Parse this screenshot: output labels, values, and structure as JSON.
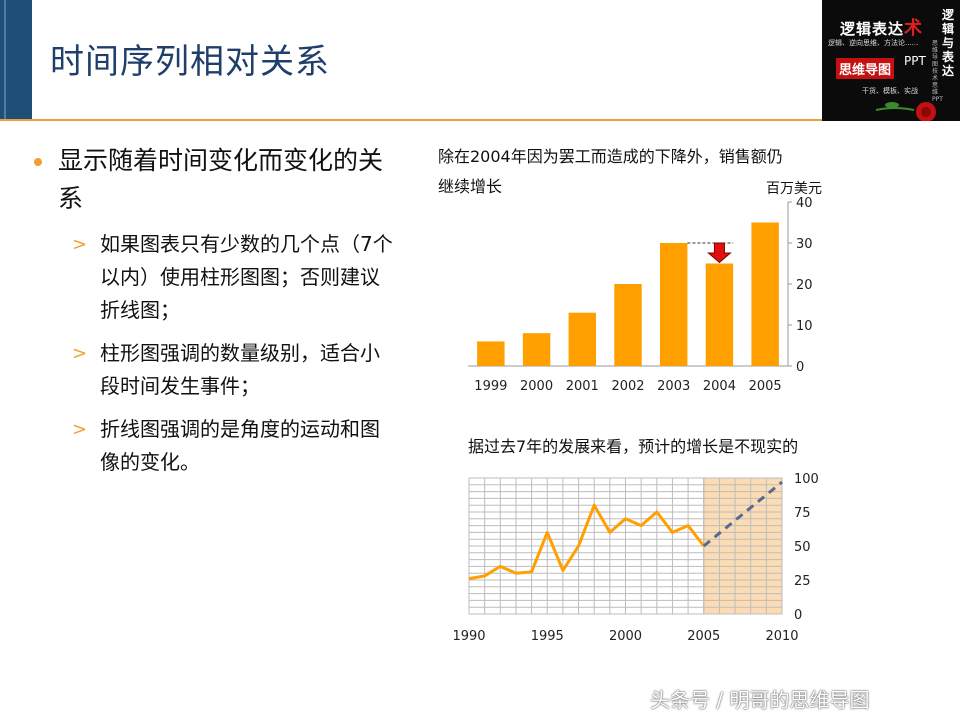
{
  "slide": {
    "title": "时间序列相对关系"
  },
  "logo": {
    "line1_prefix": "逻辑表达",
    "line1_accent": "术",
    "line2": "逻辑、逆向思维、方法论......",
    "badge": "思维导图",
    "ppt": "PPT",
    "line5": "干货、模板、实战",
    "vertical": "逻辑与表达",
    "vertical_small": "思维导图技术思维PPT"
  },
  "bullets": {
    "main": "显示随着时间变化而变化的关系",
    "sub": [
      "如果图表只有少数的几个点（7个以内）使用柱形图图；否则建议折线图；",
      "柱形图强调的数量级别，适合小段时间发生事件；",
      "折线图强调的是角度的运动和图像的变化。"
    ]
  },
  "bar_chart_caption": "除在2004年因为罢工而造成的下降外，销售额仍继续增长",
  "bar_chart_unit": "百万美元",
  "line_chart_caption": "据过去7年的发展来看，预计的增长是不现实的",
  "footer": "头条号 / 明哥的思维导图",
  "colors": {
    "accent": "#f0a030",
    "bar": "#ff9f00",
    "title": "#1f3f6b",
    "drop_arrow": "#e01010",
    "forecast_band": "#fbdcb4"
  },
  "chart_data": [
    {
      "type": "bar",
      "categories": [
        "1999",
        "2000",
        "2001",
        "2002",
        "2003",
        "2004",
        "2005"
      ],
      "values": [
        6,
        8,
        13,
        20,
        30,
        25,
        35
      ],
      "title": "",
      "xlabel": "",
      "ylabel": "百万美元",
      "ylim": [
        0,
        40
      ],
      "yticks": [
        0,
        10,
        20,
        30,
        40
      ],
      "annotation": "drop-arrow-2004",
      "grid": false
    },
    {
      "type": "line",
      "x": [
        1990,
        1991,
        1992,
        1993,
        1994,
        1995,
        1996,
        1997,
        1998,
        1999,
        2000,
        2001,
        2002,
        2003,
        2004,
        2005
      ],
      "series": [
        {
          "values": [
            26,
            28,
            35,
            30,
            31,
            60,
            32,
            50,
            80,
            60,
            70,
            65,
            75,
            60,
            65,
            50
          ]
        }
      ],
      "forecast": {
        "x": [
          2005,
          2010
        ],
        "values": [
          50,
          97
        ]
      },
      "xticks": [
        1990,
        1995,
        2000,
        2005,
        2010
      ],
      "yticks": [
        0,
        25,
        50,
        75,
        100
      ],
      "xlim": [
        1990,
        2010
      ],
      "ylim": [
        0,
        100
      ],
      "highlight_range": [
        2005,
        2010
      ],
      "grid": true
    }
  ]
}
